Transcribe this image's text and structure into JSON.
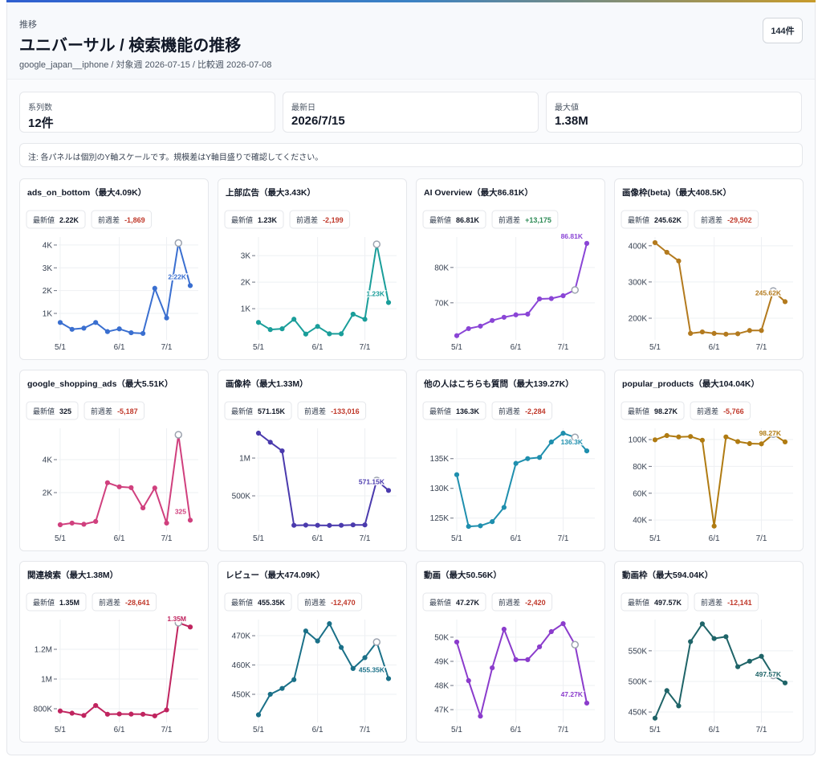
{
  "header": {
    "eyebrow": "推移",
    "title": "ユニバーサル / 検索機能の推移",
    "subtitle": "google_japan__iphone / 対象週 2026-07-15 / 比較週 2026-07-08",
    "count": "144件"
  },
  "stats": [
    {
      "label": "系列数",
      "value": "12件"
    },
    {
      "label": "最新日",
      "value": "2026/7/15"
    },
    {
      "label": "最大値",
      "value": "1.38M"
    }
  ],
  "note": "注: 各パネルは個別のY軸スケールです。規模差はY軸目盛りで確認してください。",
  "chart_data": [
    {
      "type": "line",
      "title": "ads_on_bottom（最大4.09K）",
      "latest_label": "最新値",
      "latest": "2.22K",
      "diff_label": "前週差",
      "diff": "-1,869",
      "color": "#3a6fd0",
      "categories": [
        "5/1",
        null,
        null,
        null,
        null,
        "6/1",
        null,
        null,
        null,
        "7/1",
        null,
        null
      ],
      "values": [
        600,
        300,
        350,
        600,
        200,
        320,
        150,
        120,
        2100,
        800,
        4089,
        2220
      ],
      "value_labels": [
        null,
        null,
        null,
        null,
        null,
        null,
        null,
        null,
        null,
        null,
        null,
        "2.22K"
      ],
      "ylim": [
        -165,
        4350
      ],
      "yticks": [
        {
          "value": 1000,
          "label": "1K"
        },
        {
          "value": 2000,
          "label": "2K"
        },
        {
          "value": 3000,
          "label": "3K"
        },
        {
          "value": 4000,
          "label": "4K"
        }
      ]
    },
    {
      "type": "line",
      "title": "上部広告（最大3.43K）",
      "latest_label": "最新値",
      "latest": "1.23K",
      "diff_label": "前週差",
      "diff": "-2,199",
      "color": "#1a9e9a",
      "categories": [
        "5/1",
        null,
        null,
        null,
        null,
        "6/1",
        null,
        null,
        null,
        "7/1",
        null,
        null
      ],
      "values": [
        480,
        210,
        240,
        600,
        40,
        330,
        50,
        50,
        790,
        600,
        3429,
        1230
      ],
      "value_labels": [
        null,
        null,
        null,
        null,
        null,
        null,
        null,
        null,
        null,
        null,
        null,
        "1.23K"
      ],
      "ylim": [
        -180,
        3700
      ],
      "yticks": [
        {
          "value": 1000,
          "label": "1K"
        },
        {
          "value": 2000,
          "label": "2K"
        },
        {
          "value": 3000,
          "label": "3K"
        }
      ]
    },
    {
      "type": "line",
      "title": "AI Overview（最大86.81K）",
      "latest_label": "最新値",
      "latest": "86.81K",
      "diff_label": "前週差",
      "diff": "+13,175",
      "color": "#8a45d6",
      "categories": [
        "5/1",
        null,
        null,
        null,
        null,
        "6/1",
        null,
        null,
        null,
        "7/1",
        null,
        null
      ],
      "values": [
        60700,
        62700,
        63400,
        65000,
        65900,
        66600,
        66800,
        71100,
        71200,
        72000,
        73635,
        86810
      ],
      "value_labels": [
        null,
        null,
        null,
        null,
        null,
        null,
        null,
        null,
        null,
        null,
        null,
        "86.81K"
      ],
      "ylim": [
        59500,
        88600
      ],
      "yticks": [
        {
          "value": 70000,
          "label": "70K"
        },
        {
          "value": 80000,
          "label": "80K"
        }
      ]
    },
    {
      "type": "line",
      "title": "画像枠(beta)（最大408.5K）",
      "latest_label": "最新値",
      "latest": "245.62K",
      "diff_label": "前週差",
      "diff": "-29,502",
      "color": "#b37a1e",
      "categories": [
        "5/1",
        null,
        null,
        null,
        null,
        "6/1",
        null,
        null,
        null,
        "7/1",
        null,
        null
      ],
      "values": [
        408500,
        382000,
        358000,
        158000,
        162000,
        158000,
        156000,
        157000,
        166000,
        166000,
        275122,
        245620
      ],
      "value_labels": [
        null,
        null,
        null,
        null,
        null,
        null,
        null,
        null,
        null,
        null,
        null,
        "245.62K"
      ],
      "ylim": [
        140000,
        424000
      ],
      "yticks": [
        {
          "value": 200000,
          "label": "200K"
        },
        {
          "value": 300000,
          "label": "300K"
        },
        {
          "value": 400000,
          "label": "400K"
        }
      ]
    },
    {
      "type": "line",
      "title": "google_shopping_ads（最大5.51K）",
      "latest_label": "最新値",
      "latest": "325",
      "diff_label": "前週差",
      "diff": "-5,187",
      "color": "#d0407e",
      "categories": [
        "5/1",
        null,
        null,
        null,
        null,
        "6/1",
        null,
        null,
        null,
        "7/1",
        null,
        null
      ],
      "values": [
        50,
        150,
        80,
        250,
        2600,
        2350,
        2300,
        1070,
        2280,
        150,
        5512,
        325
      ],
      "value_labels": [
        null,
        null,
        null,
        null,
        null,
        null,
        null,
        null,
        null,
        null,
        null,
        "325"
      ],
      "ylim": [
        -340,
        5900
      ],
      "yticks": [
        {
          "value": 2000,
          "label": "2K"
        },
        {
          "value": 4000,
          "label": "4K"
        }
      ]
    },
    {
      "type": "line",
      "title": "画像枠（最大1.33M）",
      "latest_label": "最新値",
      "latest": "571.15K",
      "diff_label": "前週差",
      "diff": "-133,016",
      "color": "#4a3aad",
      "categories": [
        "5/1",
        null,
        null,
        null,
        null,
        "6/1",
        null,
        null,
        null,
        "7/1",
        null,
        null
      ],
      "values": [
        1330000,
        1210000,
        1095000,
        110000,
        112000,
        110000,
        108000,
        110000,
        115000,
        115000,
        704166,
        571150
      ],
      "value_labels": [
        null,
        null,
        null,
        null,
        null,
        null,
        null,
        null,
        null,
        null,
        null,
        "571.15K"
      ],
      "ylim": [
        32000,
        1394000
      ],
      "yticks": [
        {
          "value": 500000,
          "label": "500K"
        },
        {
          "value": 1000000,
          "label": "1M"
        }
      ]
    },
    {
      "type": "line",
      "title": "他の人はこちらも質問（最大139.27K）",
      "latest_label": "最新値",
      "latest": "136.3K",
      "diff_label": "前週差",
      "diff": "-2,284",
      "color": "#1f8fae",
      "categories": [
        "5/1",
        null,
        null,
        null,
        null,
        "6/1",
        null,
        null,
        null,
        "7/1",
        null,
        null
      ],
      "values": [
        132300,
        123600,
        123700,
        124400,
        126800,
        134200,
        135000,
        135200,
        137800,
        139270,
        138584,
        136300
      ],
      "value_labels": [
        null,
        null,
        null,
        null,
        null,
        null,
        null,
        null,
        null,
        null,
        null,
        "136.3K"
      ],
      "ylim": [
        122800,
        140100
      ],
      "yticks": [
        {
          "value": 125000,
          "label": "125K"
        },
        {
          "value": 130000,
          "label": "130K"
        },
        {
          "value": 135000,
          "label": "135K"
        }
      ]
    },
    {
      "type": "line",
      "title": "popular_products（最大104.04K）",
      "latest_label": "最新値",
      "latest": "98.27K",
      "diff_label": "前週差",
      "diff": "-5,766",
      "color": "#b07b12",
      "categories": [
        "5/1",
        null,
        null,
        null,
        null,
        "6/1",
        null,
        null,
        null,
        "7/1",
        null,
        null
      ],
      "values": [
        99800,
        103000,
        102000,
        102300,
        99500,
        35500,
        102000,
        98500,
        97000,
        96800,
        104036,
        98270
      ],
      "value_labels": [
        null,
        null,
        null,
        null,
        null,
        null,
        null,
        null,
        null,
        null,
        null,
        "98.27K"
      ],
      "ylim": [
        31700,
        108400
      ],
      "yticks": [
        {
          "value": 40000,
          "label": "40K"
        },
        {
          "value": 60000,
          "label": "60K"
        },
        {
          "value": 80000,
          "label": "80K"
        },
        {
          "value": 100000,
          "label": "100K"
        }
      ]
    },
    {
      "type": "line",
      "title": "関連検索（最大1.38M）",
      "latest_label": "最新値",
      "latest": "1.35M",
      "diff_label": "前週差",
      "diff": "-28,641",
      "color": "#c0245f",
      "categories": [
        "5/1",
        null,
        null,
        null,
        null,
        "6/1",
        null,
        null,
        null,
        "7/1",
        null,
        null
      ],
      "values": [
        785000,
        770000,
        755000,
        822000,
        763000,
        765000,
        764000,
        763000,
        752000,
        792000,
        1378641,
        1350000
      ],
      "value_labels": [
        null,
        null,
        null,
        null,
        null,
        null,
        null,
        null,
        null,
        null,
        null,
        "1.35M"
      ],
      "ylim": [
        708000,
        1400000
      ],
      "yticks": [
        {
          "value": 800000,
          "label": "800K"
        },
        {
          "value": 1000000,
          "label": "1M"
        },
        {
          "value": 1200000,
          "label": "1.2M"
        }
      ]
    },
    {
      "type": "line",
      "title": "レビュー（最大474.09K）",
      "latest_label": "最新値",
      "latest": "455.35K",
      "diff_label": "前週差",
      "diff": "-12,470",
      "color": "#1a7088",
      "categories": [
        "5/1",
        null,
        null,
        null,
        null,
        "6/1",
        null,
        null,
        null,
        "7/1",
        null,
        null
      ],
      "values": [
        443000,
        450000,
        452000,
        455000,
        471600,
        468200,
        474090,
        466000,
        458800,
        462500,
        467820,
        455350
      ],
      "value_labels": [
        null,
        null,
        null,
        null,
        null,
        null,
        null,
        null,
        null,
        null,
        null,
        "455.35K"
      ],
      "ylim": [
        440400,
        475500
      ],
      "yticks": [
        {
          "value": 450000,
          "label": "450K"
        },
        {
          "value": 460000,
          "label": "460K"
        },
        {
          "value": 470000,
          "label": "470K"
        }
      ]
    },
    {
      "type": "line",
      "title": "動画（最大50.56K）",
      "latest_label": "最新値",
      "latest": "47.27K",
      "diff_label": "前週差",
      "diff": "-2,420",
      "color": "#8b3ccc",
      "categories": [
        "5/1",
        null,
        null,
        null,
        null,
        "6/1",
        null,
        null,
        null,
        "7/1",
        null,
        null
      ],
      "values": [
        49800,
        48200,
        46730,
        48730,
        50330,
        49070,
        49070,
        49600,
        50230,
        50560,
        49690,
        47270
      ],
      "value_labels": [
        null,
        null,
        null,
        null,
        null,
        null,
        null,
        null,
        null,
        null,
        null,
        "47.27K"
      ],
      "ylim": [
        46470,
        50730
      ],
      "yticks": [
        {
          "value": 47000,
          "label": "47K"
        },
        {
          "value": 48000,
          "label": "48K"
        },
        {
          "value": 49000,
          "label": "49K"
        },
        {
          "value": 50000,
          "label": "50K"
        }
      ]
    },
    {
      "type": "line",
      "title": "動画枠（最大594.04K）",
      "latest_label": "最新値",
      "latest": "497.57K",
      "diff_label": "前週差",
      "diff": "-12,141",
      "color": "#1f6468",
      "categories": [
        "5/1",
        null,
        null,
        null,
        null,
        "6/1",
        null,
        null,
        null,
        "7/1",
        null,
        null
      ],
      "values": [
        440000,
        485000,
        460000,
        565000,
        594040,
        570000,
        573000,
        524000,
        533000,
        541000,
        509711,
        497570
      ],
      "value_labels": [
        null,
        null,
        null,
        null,
        null,
        null,
        null,
        null,
        null,
        null,
        null,
        "497.57K"
      ],
      "ylim": [
        433000,
        601000
      ],
      "yticks": [
        {
          "value": 450000,
          "label": "450K"
        },
        {
          "value": 500000,
          "label": "500K"
        },
        {
          "value": 550000,
          "label": "550K"
        }
      ]
    }
  ]
}
